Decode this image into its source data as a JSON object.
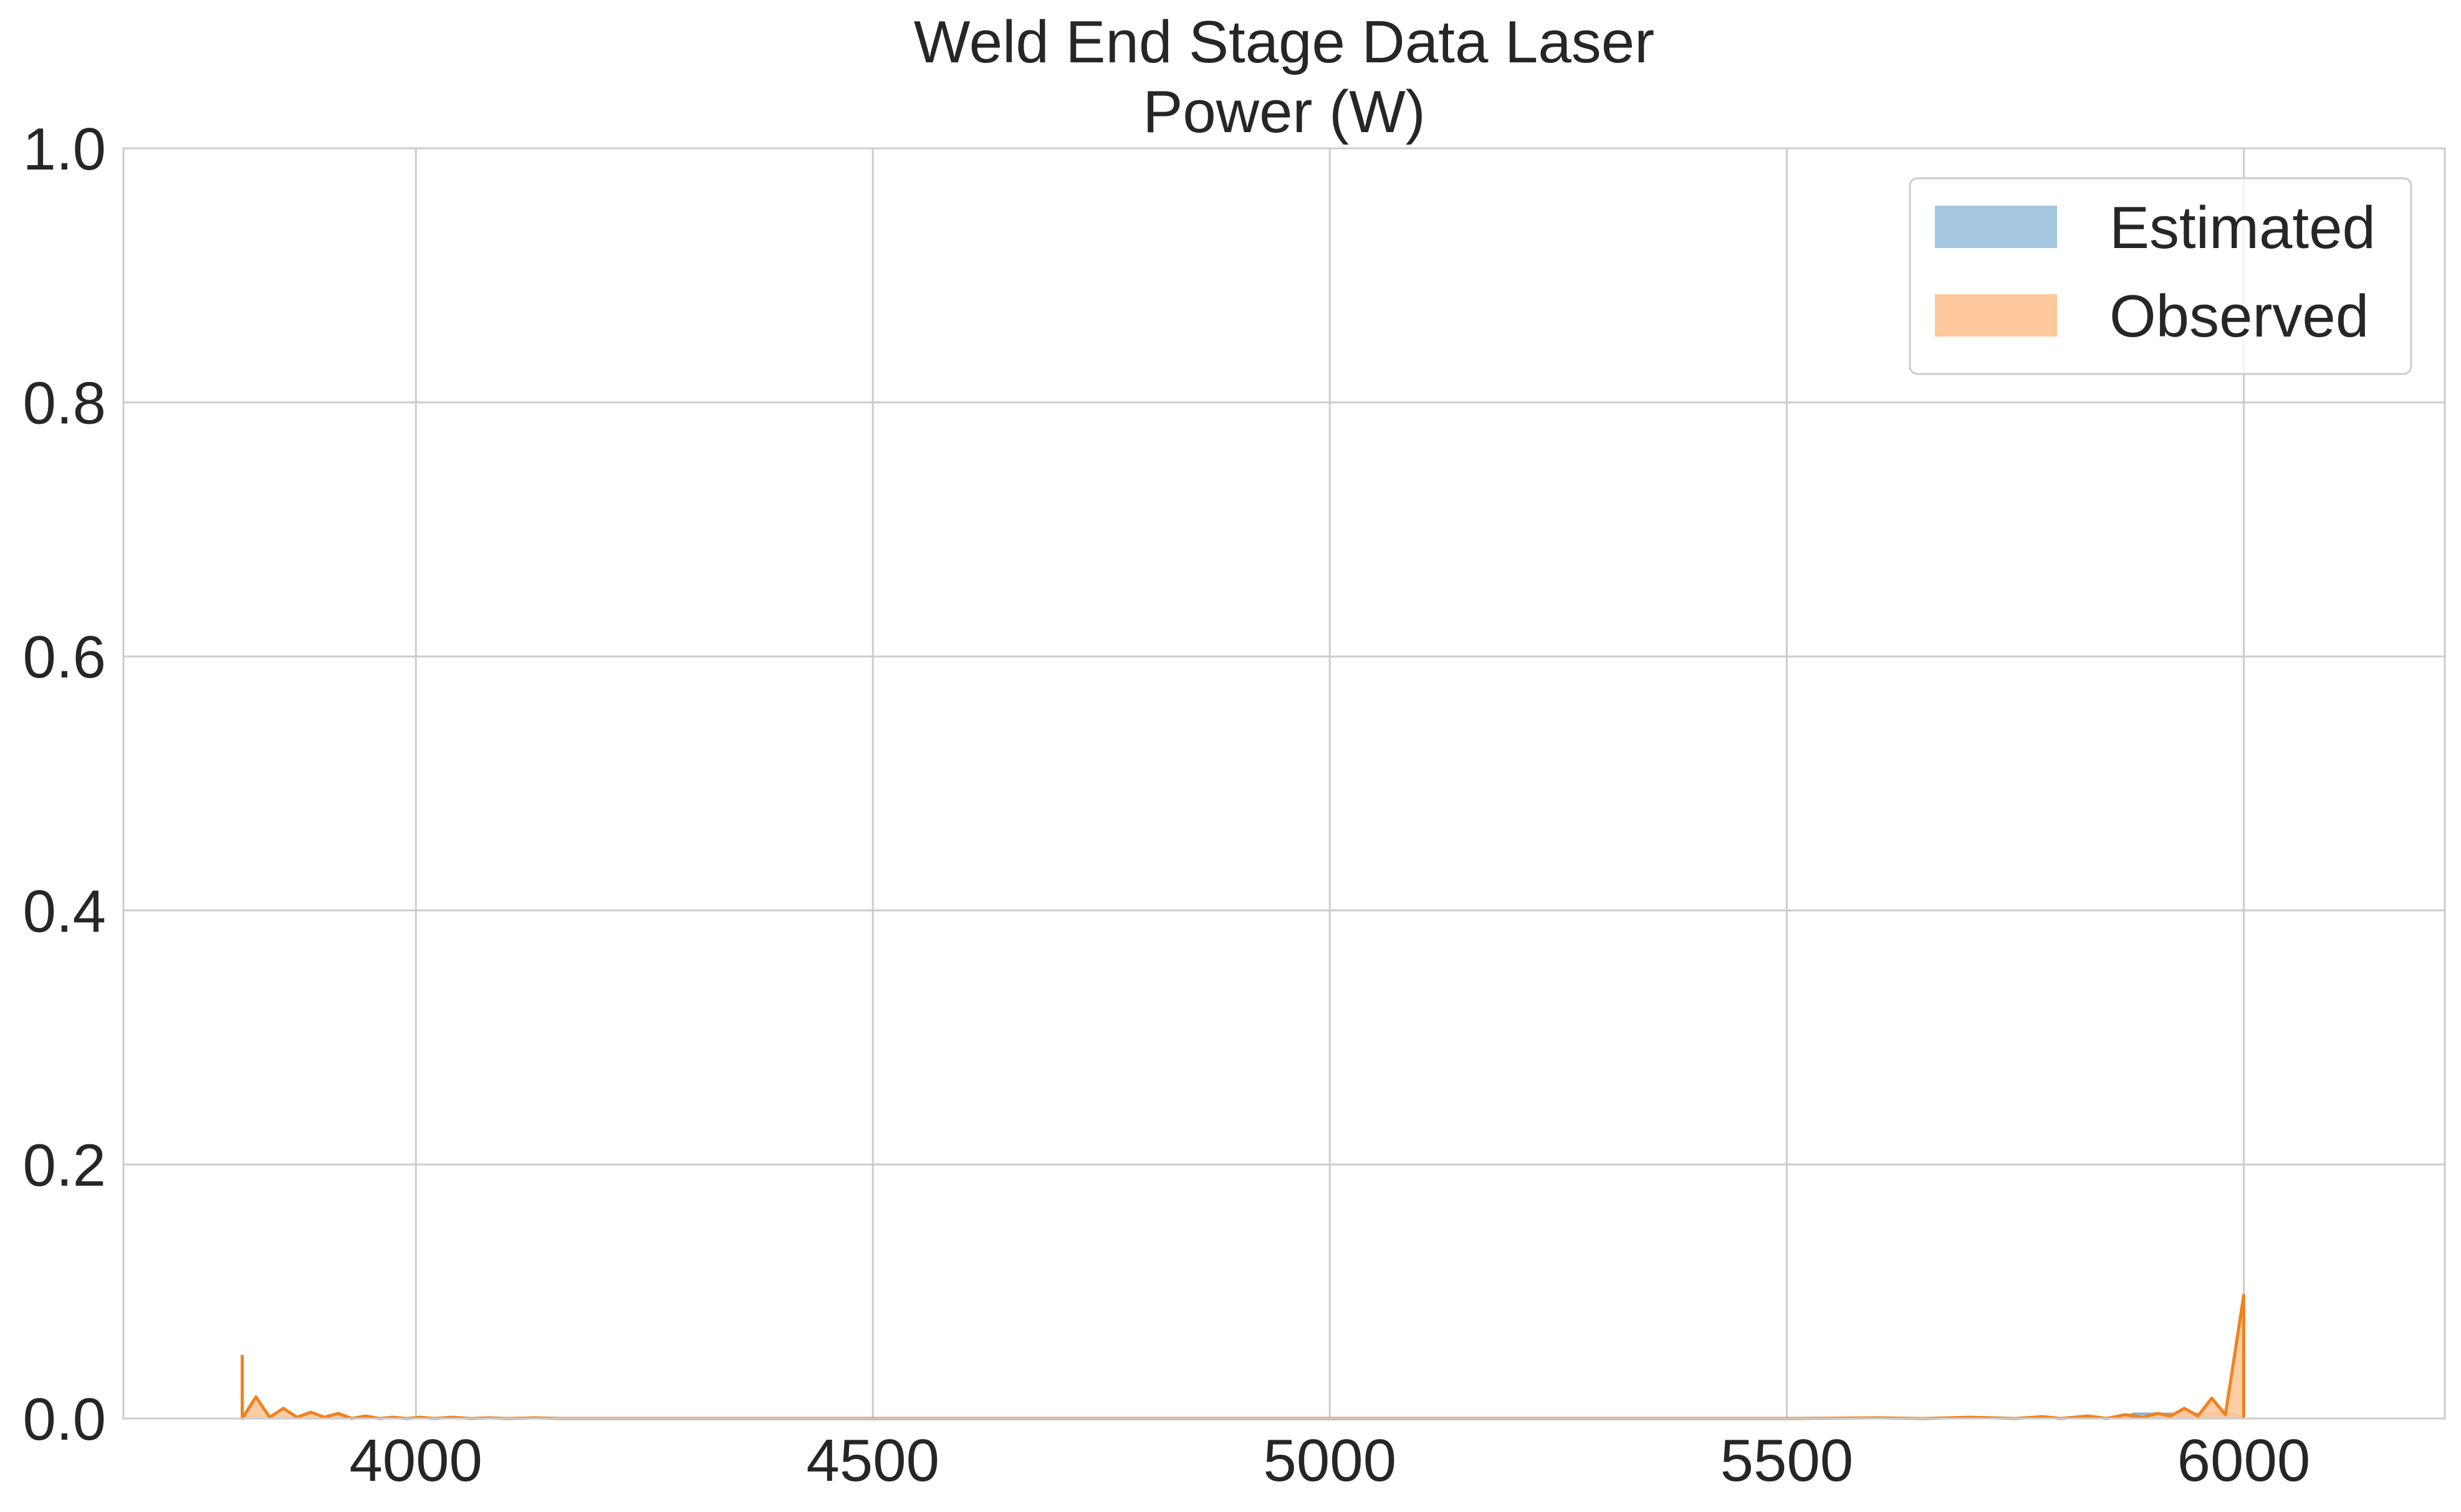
{
  "chart_data": {
    "type": "area",
    "title_lines": [
      "Weld End Stage Data Laser",
      "Power (W)"
    ],
    "xlabel": "",
    "ylabel": "",
    "xlim": [
      3680,
      6220
    ],
    "ylim": [
      0,
      1.0
    ],
    "xticks": [
      4000,
      4500,
      5000,
      5500,
      6000
    ],
    "yticks": [
      0.0,
      0.2,
      0.4,
      0.6,
      0.8,
      1.0
    ],
    "xtick_labels": [
      "4000",
      "4500",
      "5000",
      "5500",
      "6000"
    ],
    "ytick_labels": [
      "0.0",
      "0.2",
      "0.4",
      "0.6",
      "0.8",
      "1.0"
    ],
    "grid": true,
    "legend_position": "top-right",
    "series": [
      {
        "name": "Estimated",
        "color": "#1f77b4",
        "fill_color": "#a6c7e1",
        "x": [
          3810,
          3860,
          5860,
          5880,
          5900,
          5920,
          5940,
          5960,
          5980,
          5990,
          6000
        ],
        "y": [
          0.0,
          0.0,
          0.0,
          0.004,
          0.004,
          0.004,
          0.004,
          0.004,
          0.004,
          0.004,
          0.0
        ]
      },
      {
        "name": "Observed",
        "color": "#ff7f0e",
        "fill_color": "#ffc89c",
        "line_color": "#f0821e",
        "x": [
          3810,
          3810,
          3825,
          3840,
          3855,
          3870,
          3885,
          3900,
          3915,
          3930,
          3945,
          3960,
          3975,
          3990,
          4005,
          4020,
          4040,
          4060,
          4080,
          4100,
          4130,
          4160,
          4200,
          4300,
          4500,
          5000,
          5500,
          5600,
          5650,
          5700,
          5750,
          5780,
          5800,
          5830,
          5850,
          5870,
          5890,
          5905,
          5920,
          5935,
          5950,
          5965,
          5980,
          5990,
          6000,
          6000
        ],
        "y": [
          0.05,
          0.0,
          0.017,
          0.001,
          0.008,
          0.001,
          0.005,
          0.001,
          0.004,
          0.0,
          0.002,
          0.0,
          0.001,
          0.0,
          0.001,
          0.0,
          0.001,
          0.0,
          0.0005,
          0.0,
          0.0005,
          0.0,
          0.0,
          0.0,
          0.0,
          0.0,
          0.0,
          0.0005,
          0.0,
          0.001,
          0.0,
          0.0015,
          0.0,
          0.002,
          0.0,
          0.003,
          0.001,
          0.004,
          0.002,
          0.008,
          0.002,
          0.016,
          0.003,
          0.05,
          0.097,
          0.0
        ]
      }
    ]
  }
}
